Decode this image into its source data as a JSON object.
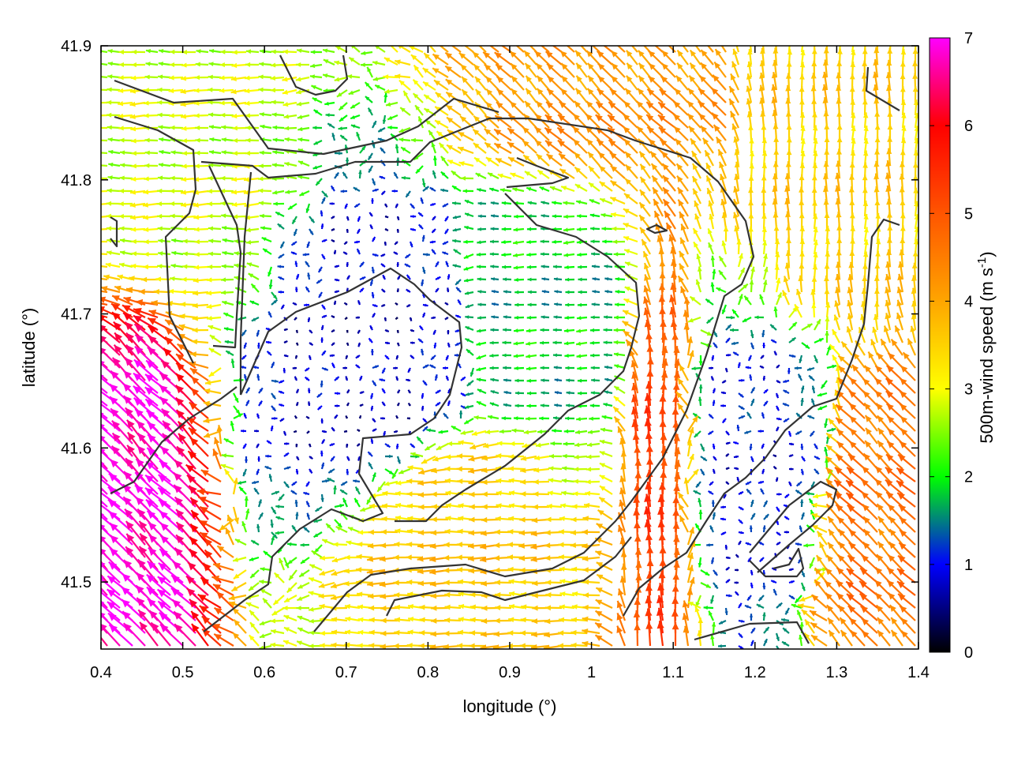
{
  "chart_data": {
    "type": "quiver",
    "xlabel": "longitude (°)",
    "ylabel": "latitude (°)",
    "xlim": [
      0.4,
      1.4
    ],
    "ylim": [
      41.45,
      41.9
    ],
    "x_ticks": [
      "0.4",
      "0.5",
      "0.6",
      "0.7",
      "0.8",
      "0.9",
      "1",
      "1.1",
      "1.2",
      "1.3",
      "1.4"
    ],
    "y_ticks": [
      "41.5",
      "41.6",
      "41.7",
      "41.8",
      "41.9"
    ],
    "colorbar": {
      "label": "500m-wind speed (m s",
      "label_superscript": "-1",
      "label_suffix": ")",
      "range": [
        0,
        7
      ],
      "ticks": [
        "0",
        "1",
        "2",
        "3",
        "4",
        "5",
        "6",
        "7"
      ],
      "palette": [
        "#000000",
        "#0000ff",
        "#00ff00",
        "#ffff00",
        "#ffa500",
        "#ff5500",
        "#ff0000",
        "#ff00ff"
      ]
    },
    "grid": false,
    "contour_color": "#333333",
    "wind_regions": [
      {
        "lon": [
          0.4,
          0.52
        ],
        "lat": [
          41.45,
          41.7
        ],
        "speed": 6.9,
        "direction": "northwest"
      },
      {
        "lon": [
          0.4,
          0.6
        ],
        "lat": [
          41.7,
          41.9
        ],
        "speed": 2.8,
        "direction": "west"
      },
      {
        "lon": [
          0.6,
          0.85
        ],
        "lat": [
          41.55,
          41.75
        ],
        "speed": 0.8,
        "direction": "variable"
      },
      {
        "lon": [
          0.7,
          0.95
        ],
        "lat": [
          41.45,
          41.62
        ],
        "speed": 3.6,
        "direction": "west"
      },
      {
        "lon": [
          0.85,
          1.05
        ],
        "lat": [
          41.62,
          41.78
        ],
        "speed": 1.8,
        "direction": "west"
      },
      {
        "lon": [
          0.9,
          1.15
        ],
        "lat": [
          41.8,
          41.9
        ],
        "speed": 4.2,
        "direction": "northwest"
      },
      {
        "lon": [
          1.05,
          1.12
        ],
        "lat": [
          41.45,
          41.72
        ],
        "speed": 5.2,
        "direction": "north"
      },
      {
        "lon": [
          1.12,
          1.3
        ],
        "lat": [
          41.5,
          41.68
        ],
        "speed": 1.0,
        "direction": "variable"
      },
      {
        "lon": [
          1.2,
          1.4
        ],
        "lat": [
          41.7,
          41.9
        ],
        "speed": 3.5,
        "direction": "north"
      },
      {
        "lon": [
          1.28,
          1.4
        ],
        "lat": [
          41.45,
          41.65
        ],
        "speed": 4.6,
        "direction": "northwest"
      }
    ]
  }
}
